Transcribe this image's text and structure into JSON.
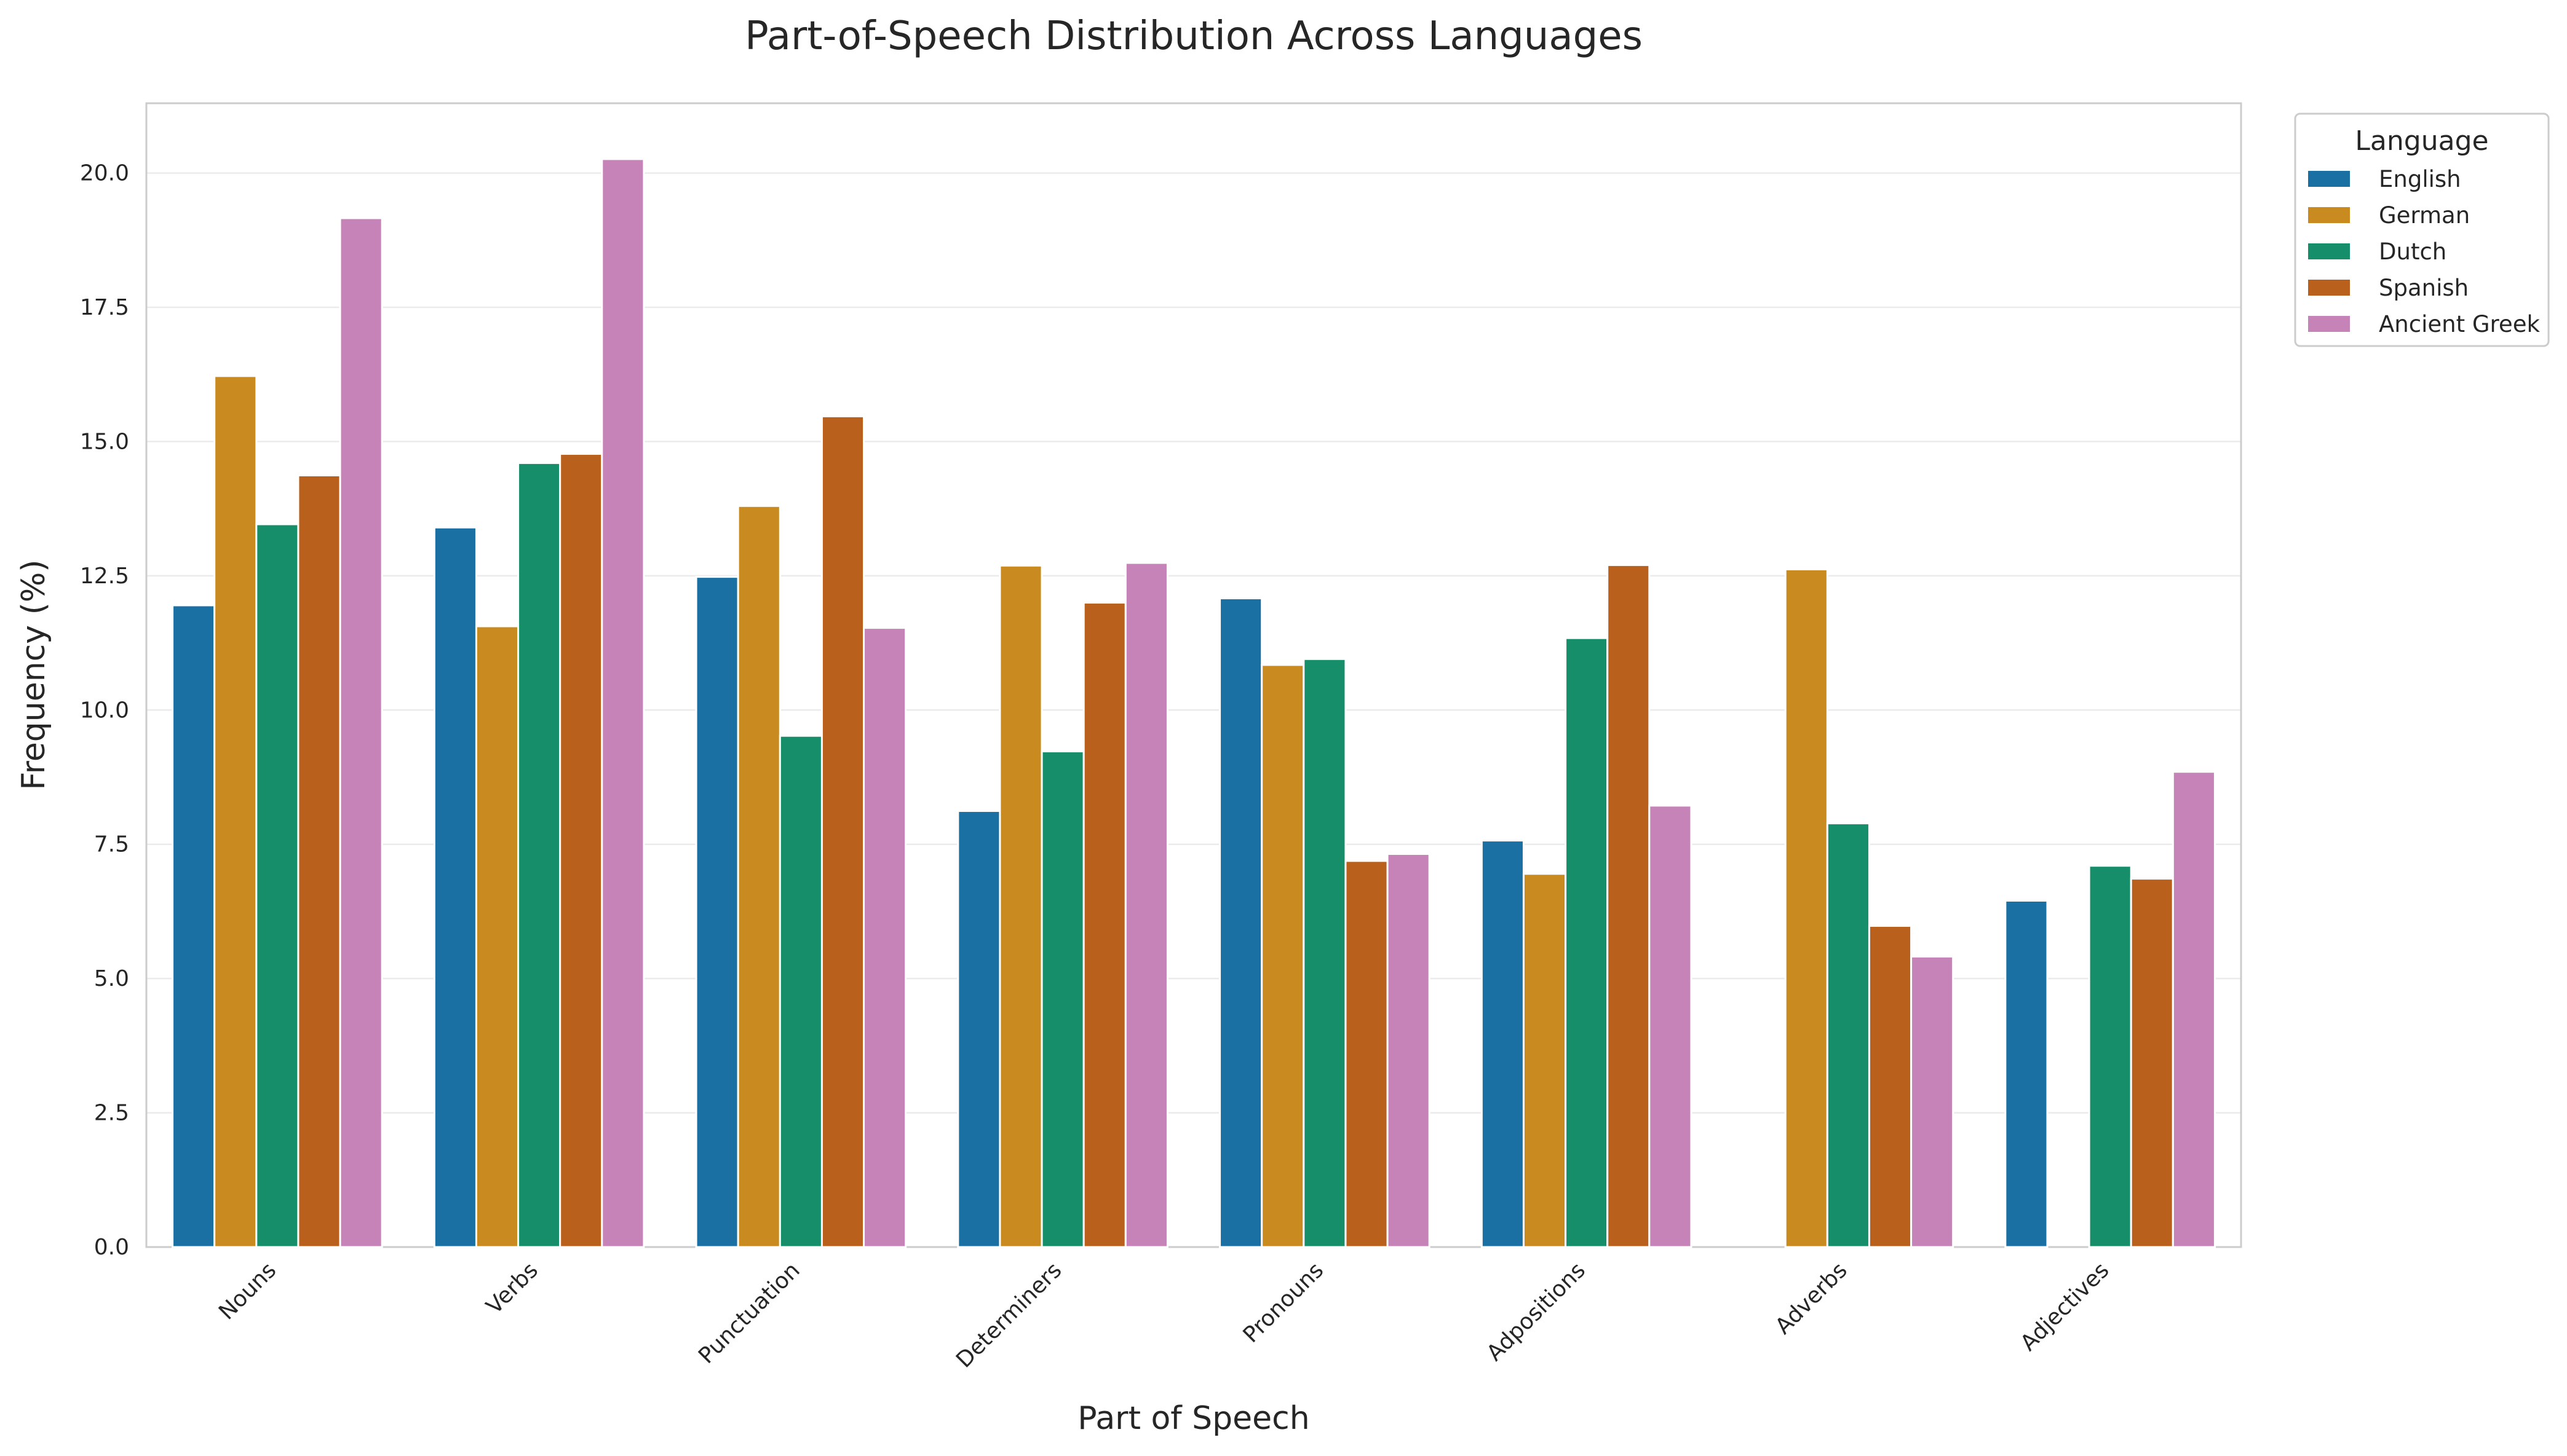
{
  "chart_data": {
    "type": "bar",
    "title": "Part-of-Speech Distribution Across Languages",
    "xlabel": "Part of Speech",
    "ylabel": "Frequency (%)",
    "ylim": [
      0,
      21.3
    ],
    "yticks": [
      "0.0",
      "2.5",
      "5.0",
      "7.5",
      "10.0",
      "12.5",
      "15.0",
      "17.5",
      "20.0"
    ],
    "grid": "horizontal",
    "legend": {
      "title": "Language",
      "placement": "outside-top-right"
    },
    "categories": [
      "Nouns",
      "Verbs",
      "Punctuation",
      "Determiners",
      "Pronouns",
      "Adpositions",
      "Adverbs",
      "Adjectives"
    ],
    "series": [
      {
        "name": "English",
        "color": "#1a6fa3",
        "values": [
          11.95,
          13.4,
          12.48,
          8.12,
          12.08,
          7.57,
          null,
          6.45
        ]
      },
      {
        "name": "German",
        "color": "#c98a1f",
        "values": [
          16.22,
          11.56,
          13.8,
          12.69,
          10.84,
          6.95,
          12.62,
          null
        ]
      },
      {
        "name": "Dutch",
        "color": "#168e6a",
        "values": [
          13.46,
          14.6,
          9.52,
          9.23,
          10.95,
          11.34,
          7.89,
          7.1
        ]
      },
      {
        "name": "Spanish",
        "color": "#b9601d",
        "values": [
          14.37,
          14.77,
          15.47,
          12.0,
          7.19,
          12.7,
          5.98,
          6.86
        ]
      },
      {
        "name": "Ancient Greek",
        "color": "#c583b7",
        "values": [
          19.16,
          20.26,
          11.53,
          12.74,
          7.32,
          8.22,
          5.41,
          8.85
        ]
      }
    ]
  }
}
